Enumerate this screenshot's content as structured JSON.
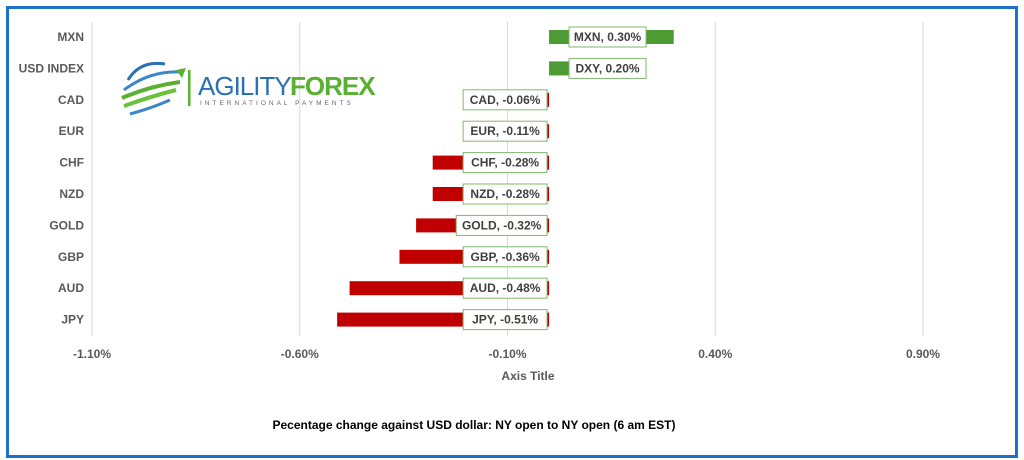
{
  "chart_data": {
    "type": "bar",
    "orientation": "horizontal",
    "categories": [
      "MXN",
      "USD INDEX",
      "CAD",
      "EUR",
      "CHF",
      "NZD",
      "GOLD",
      "GBP",
      "AUD",
      "JPY"
    ],
    "values": [
      0.3,
      0.2,
      -0.06,
      -0.11,
      -0.28,
      -0.28,
      -0.32,
      -0.36,
      -0.48,
      -0.51
    ],
    "data_labels": [
      "MXN, 0.30%",
      "DXY, 0.20%",
      "CAD, -0.06%",
      "EUR, -0.11%",
      "CHF, -0.28%",
      "NZD, -0.28%",
      "GOLD, -0.32%",
      "GBP, -0.36%",
      "AUD, -0.48%",
      "JPY, -0.51%"
    ],
    "xlabel": "Axis Title",
    "xlim": [
      -1.1,
      1.1
    ],
    "xticks": [
      -1.1,
      -0.6,
      -0.1,
      0.4,
      0.9
    ],
    "xtick_labels": [
      "-1.10%",
      "-0.60%",
      "-0.10%",
      "0.40%",
      "0.90%"
    ],
    "grid": true,
    "caption": "Pecentage change against USD dollar:  NY open to NY open  (6 am EST)",
    "colors": {
      "positive": "#4e9a33",
      "negative": "#c00000",
      "label_border": "#7fb86a",
      "frame": "#1a73c9"
    }
  },
  "logo": {
    "brand_a": "AGILITY",
    "brand_b": "FOREX",
    "tagline": "INTERNATIONAL PAYMENTS"
  }
}
